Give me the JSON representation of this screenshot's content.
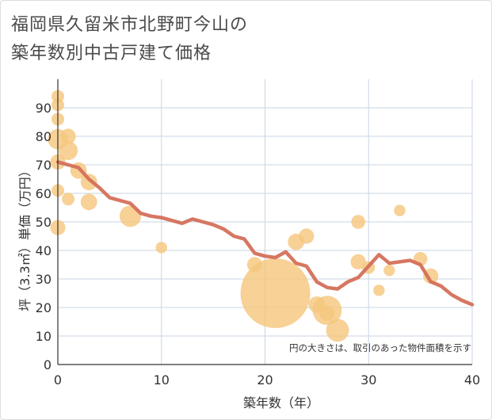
{
  "chart_data": {
    "type": "scatter",
    "title_lines": [
      "福岡県久留米市北野町今山の",
      "築年数別中古戸建て価格"
    ],
    "xlabel": "築年数（年）",
    "ylabel": "坪（3.3㎡）単価（万円）",
    "xlim": [
      0,
      40
    ],
    "ylim": [
      0,
      100
    ],
    "xticks": [
      "0",
      "10",
      "20",
      "30",
      "40"
    ],
    "yticks": [
      "0",
      "10",
      "20",
      "30",
      "40",
      "50",
      "60",
      "70",
      "80",
      "90"
    ],
    "xtick_values": [
      0,
      10,
      20,
      30,
      40
    ],
    "ytick_values": [
      0,
      10,
      20,
      30,
      40,
      50,
      60,
      70,
      80,
      90
    ],
    "grid": true,
    "note": "円の大きさは、取引のあった物件面積を示す",
    "colors": {
      "bubble": "#f5c77e",
      "line": "#d4705a",
      "grid": "#c9d6e3",
      "axis": "#333333"
    },
    "bubbles": [
      {
        "x": 0,
        "y": 94,
        "size": 1.0
      },
      {
        "x": 0,
        "y": 91,
        "size": 1.0
      },
      {
        "x": 0,
        "y": 86,
        "size": 1.0
      },
      {
        "x": 0,
        "y": 79,
        "size": 1.6
      },
      {
        "x": 0,
        "y": 71,
        "size": 1.2
      },
      {
        "x": 0,
        "y": 61,
        "size": 1.0
      },
      {
        "x": 0,
        "y": 48,
        "size": 1.2
      },
      {
        "x": 1,
        "y": 80,
        "size": 1.2
      },
      {
        "x": 1,
        "y": 75,
        "size": 1.5
      },
      {
        "x": 1,
        "y": 58,
        "size": 1.0
      },
      {
        "x": 2,
        "y": 68,
        "size": 1.3
      },
      {
        "x": 3,
        "y": 64,
        "size": 1.3
      },
      {
        "x": 3,
        "y": 57,
        "size": 1.3
      },
      {
        "x": 7,
        "y": 52,
        "size": 1.7
      },
      {
        "x": 10,
        "y": 41,
        "size": 0.9
      },
      {
        "x": 19,
        "y": 35,
        "size": 1.2
      },
      {
        "x": 21,
        "y": 25,
        "size": 5.5
      },
      {
        "x": 23,
        "y": 43,
        "size": 1.3
      },
      {
        "x": 24,
        "y": 45,
        "size": 1.2
      },
      {
        "x": 25,
        "y": 21,
        "size": 1.3
      },
      {
        "x": 26,
        "y": 19,
        "size": 2.3
      },
      {
        "x": 26,
        "y": 18,
        "size": 1.2
      },
      {
        "x": 27,
        "y": 12,
        "size": 1.8
      },
      {
        "x": 29,
        "y": 50,
        "size": 1.1
      },
      {
        "x": 29,
        "y": 36,
        "size": 1.2
      },
      {
        "x": 30,
        "y": 34,
        "size": 1.0
      },
      {
        "x": 31,
        "y": 26,
        "size": 0.9
      },
      {
        "x": 32,
        "y": 33,
        "size": 0.9
      },
      {
        "x": 33,
        "y": 54,
        "size": 0.9
      },
      {
        "x": 35,
        "y": 37,
        "size": 1.1
      },
      {
        "x": 36,
        "y": 31,
        "size": 1.2
      }
    ],
    "trend": {
      "x": [
        0,
        1,
        2,
        3,
        4,
        5,
        6,
        7,
        8,
        9,
        10,
        11,
        12,
        13,
        14,
        15,
        16,
        17,
        18,
        19,
        20,
        21,
        22,
        23,
        24,
        25,
        26,
        27,
        28,
        29,
        30,
        31,
        32,
        33,
        34,
        35,
        36,
        37,
        38,
        39,
        40
      ],
      "y": [
        71,
        70,
        69,
        65,
        62,
        58.5,
        57.5,
        56.5,
        53,
        52,
        51.5,
        50.5,
        49.5,
        51,
        50,
        49,
        47.5,
        45,
        44,
        39,
        38,
        37.5,
        39.5,
        35.5,
        34.5,
        29,
        27,
        26.5,
        29,
        30.5,
        34.5,
        38.5,
        35.5,
        36,
        36.5,
        35,
        29,
        27.5,
        24.5,
        22.5,
        21
      ]
    }
  }
}
